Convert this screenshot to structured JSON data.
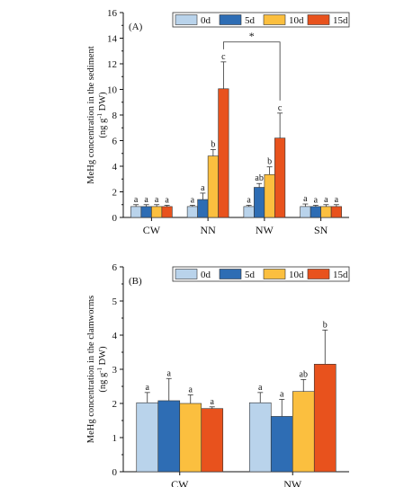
{
  "colors": {
    "0d": "#b9d3eb",
    "5d": "#2e6db4",
    "10d": "#fbbf3f",
    "15d": "#e8521d",
    "axis": "#111111"
  },
  "chart_data": [
    {
      "type": "bar",
      "panel_label": "(A)",
      "title": "",
      "xlabel": "",
      "ylabel_prefix": "MeHg concentration in the sediment",
      "ylabel_unit_pre": "(ng g",
      "ylabel_unit_sup": "-1",
      "ylabel_unit_post": " DW)",
      "ylim": [
        0,
        16
      ],
      "yticks": [
        0,
        2,
        4,
        6,
        8,
        10,
        12,
        14,
        16
      ],
      "legend_position": "top-right",
      "categories": [
        "CW",
        "NN",
        "NW",
        "SN"
      ],
      "series": [
        {
          "name": "0d",
          "values": [
            0.85,
            0.85,
            0.85,
            0.85
          ],
          "errors": [
            0.15,
            0.1,
            0.1,
            0.2
          ],
          "labels": [
            "a",
            "a",
            "a",
            "a"
          ]
        },
        {
          "name": "5d",
          "values": [
            0.85,
            1.4,
            2.35,
            0.85
          ],
          "errors": [
            0.15,
            0.5,
            0.3,
            0.1
          ],
          "labels": [
            "a",
            "a",
            "ab",
            "a"
          ]
        },
        {
          "name": "10d",
          "values": [
            0.85,
            4.8,
            3.35,
            0.85
          ],
          "errors": [
            0.15,
            0.5,
            0.6,
            0.15
          ],
          "labels": [
            "a",
            "b",
            "b",
            "a"
          ]
        },
        {
          "name": "15d",
          "values": [
            0.85,
            10.05,
            6.2,
            0.85
          ],
          "errors": [
            0.1,
            2.1,
            1.95,
            0.15
          ],
          "labels": [
            "a",
            "c",
            "c",
            "a"
          ]
        }
      ],
      "significance": {
        "symbol": "*",
        "from_category": "NN",
        "to_category": "NW",
        "series": "15d",
        "y": 13.7
      }
    },
    {
      "type": "bar",
      "panel_label": "(B)",
      "title": "",
      "xlabel": "",
      "ylabel_prefix": "MeHg concentration in the clamworms",
      "ylabel_unit_pre": "(ng g",
      "ylabel_unit_sup": "-1",
      "ylabel_unit_post": " DW)",
      "ylim": [
        0,
        6
      ],
      "yticks": [
        0,
        1,
        2,
        3,
        4,
        5,
        6
      ],
      "legend_position": "top-right",
      "categories": [
        "CW",
        "NW"
      ],
      "series": [
        {
          "name": "0d",
          "values": [
            2.02,
            2.02
          ],
          "errors": [
            0.3,
            0.3
          ],
          "labels": [
            "a",
            "a"
          ]
        },
        {
          "name": "5d",
          "values": [
            2.08,
            1.62
          ],
          "errors": [
            0.65,
            0.5
          ],
          "labels": [
            "a",
            "a"
          ]
        },
        {
          "name": "10d",
          "values": [
            2.0,
            2.35
          ],
          "errors": [
            0.25,
            0.35
          ],
          "labels": [
            "a",
            "ab"
          ]
        },
        {
          "name": "15d",
          "values": [
            1.85,
            3.15
          ],
          "errors": [
            0.05,
            1.0
          ],
          "labels": [
            "a",
            "b"
          ]
        }
      ]
    }
  ]
}
